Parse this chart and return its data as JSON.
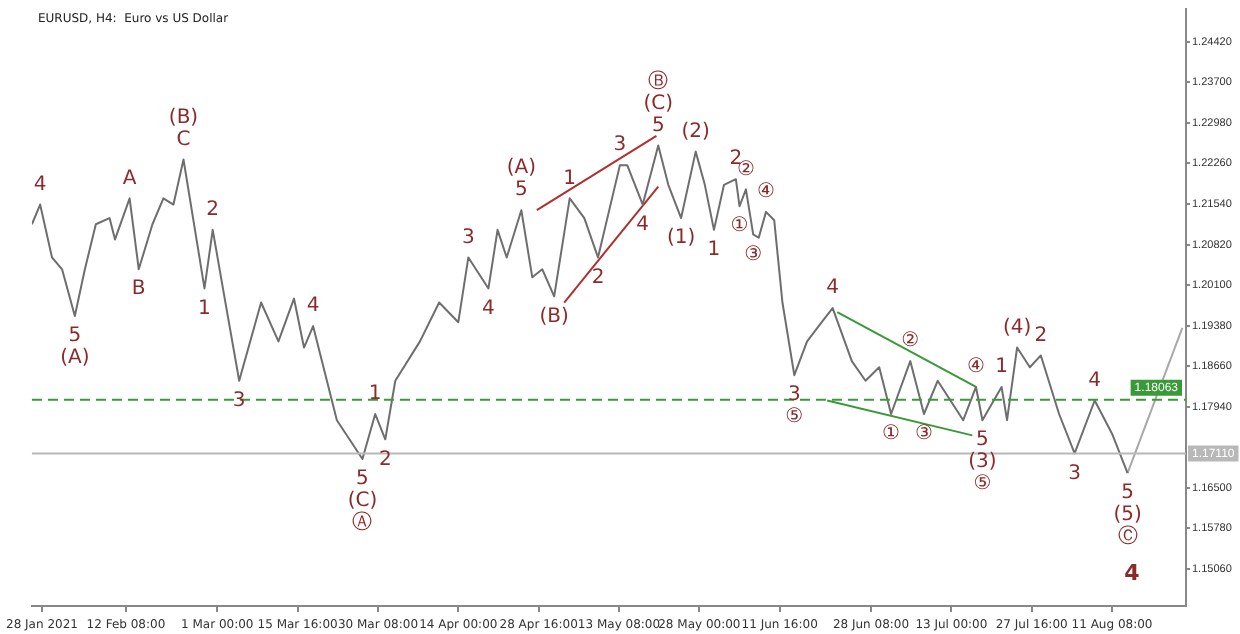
{
  "chart_data": {
    "type": "line",
    "title": "EURUSD, H4:  Euro vs US Dollar",
    "xlim": [
      "2021-01-26T04:00",
      "2021-08-24T20:00"
    ],
    "xticks": [
      {
        "value": "2021-01-28T00:00",
        "label": "28 Jan 2021"
      },
      {
        "value": "2021-02-12T08:00",
        "label": "12 Feb 08:00"
      },
      {
        "value": "2021-03-01T00:00",
        "label": "1 Mar 00:00"
      },
      {
        "value": "2021-03-15T16:00",
        "label": "15 Mar 16:00"
      },
      {
        "value": "2021-03-30T08:00",
        "label": "30 Mar 08:00"
      },
      {
        "value": "2021-04-14T00:00",
        "label": "14 Apr 00:00"
      },
      {
        "value": "2021-04-28T16:00",
        "label": "28 Apr 16:00"
      },
      {
        "value": "2021-05-13T08:00",
        "label": "13 May 08:00"
      },
      {
        "value": "2021-05-28T00:00",
        "label": "28 May 00:00"
      },
      {
        "value": "2021-06-11T16:00",
        "label": "11 Jun 16:00"
      },
      {
        "value": "2021-06-28T08:00",
        "label": "28 Jun 08:00"
      },
      {
        "value": "2021-07-13T00:00",
        "label": "13 Jul 00:00"
      },
      {
        "value": "2021-07-27T16:00",
        "label": "27 Jul 16:00"
      },
      {
        "value": "2021-08-11T08:00",
        "label": "11 Aug 08:00"
      }
    ],
    "ylim": [
      1.144,
      1.2501
    ],
    "yticks": [
      {
        "value": 1.2442,
        "label": "1.24420"
      },
      {
        "value": 1.237,
        "label": "1.23700"
      },
      {
        "value": 1.2298,
        "label": "1.22980"
      },
      {
        "value": 1.2226,
        "label": "1.22260"
      },
      {
        "value": 1.2154,
        "label": "1.21540"
      },
      {
        "value": 1.2082,
        "label": "1.20820"
      },
      {
        "value": 1.201,
        "label": "1.20100"
      },
      {
        "value": 1.1938,
        "label": "1.19380"
      },
      {
        "value": 1.1866,
        "label": "1.18660"
      },
      {
        "value": 1.1794,
        "label": "1.17940"
      },
      {
        "value": 1.165,
        "label": "1.16500"
      },
      {
        "value": 1.1578,
        "label": "1.15780"
      },
      {
        "value": 1.1506,
        "label": "1.15060"
      }
    ],
    "grid": false,
    "legend": false,
    "marker": "none",
    "series": [
      {
        "color": "#6e6e6e",
        "x": [
          "2021-01-26T04:00",
          "2021-01-27T16:00",
          "2021-01-29T20:00",
          "2021-01-31T16:00",
          "2021-02-03T00:00",
          "2021-02-04T20:00",
          "2021-02-06T20:00",
          "2021-02-09T08:00",
          "2021-02-10T08:00",
          "2021-02-13T00:00",
          "2021-02-14T16:00",
          "2021-02-17T04:00",
          "2021-02-19T04:00",
          "2021-02-21T00:00",
          "2021-02-22T20:00",
          "2021-02-25T08:00",
          "2021-02-26T16:00",
          "2021-02-28T04:00",
          "2021-03-02T16:00",
          "2021-03-05T00:00",
          "2021-03-09T00:00",
          "2021-03-12T04:00",
          "2021-03-15T00:00",
          "2021-03-16T20:00",
          "2021-03-18T12:00",
          "2021-03-22T20:00",
          "2021-03-27T12:00",
          "2021-03-29T20:00",
          "2021-03-31T16:00",
          "2021-04-02T12:00",
          "2021-04-07T00:00",
          "2021-04-10T12:00",
          "2021-04-14T00:00",
          "2021-04-15T20:00",
          "2021-04-19T12:00",
          "2021-04-21T04:00",
          "2021-04-22T20:00",
          "2021-04-25T12:00",
          "2021-04-27T12:00",
          "2021-04-29T08:00",
          "2021-05-01T12:00",
          "2021-05-04T08:00",
          "2021-05-07T00:00",
          "2021-05-09T12:00",
          "2021-05-13T12:00",
          "2021-05-14T20:00",
          "2021-05-17T16:00",
          "2021-05-20T12:00",
          "2021-05-22T08:00",
          "2021-05-24T16:00",
          "2021-05-27T08:00",
          "2021-05-29T00:00",
          "2021-05-30T16:00",
          "2021-06-01T12:00",
          "2021-06-03T16:00",
          "2021-06-04T08:00",
          "2021-06-05T12:00",
          "2021-06-06T20:00",
          "2021-06-07T20:00",
          "2021-06-09T04:00",
          "2021-06-10T16:00",
          "2021-06-12T04:00",
          "2021-06-14T08:00",
          "2021-06-16T16:00",
          "2021-06-19T08:00",
          "2021-06-21T08:00",
          "2021-06-24T20:00",
          "2021-06-27T08:00",
          "2021-06-29T20:00",
          "2021-07-02T00:00",
          "2021-07-05T12:00",
          "2021-07-08T00:00",
          "2021-07-10T12:00",
          "2021-07-15T04:00",
          "2021-07-17T12:00",
          "2021-07-18T16:00",
          "2021-07-22T04:00",
          "2021-07-23T04:00",
          "2021-07-25T00:00",
          "2021-07-27T08:00",
          "2021-07-29T08:00",
          "2021-08-01T16:00",
          "2021-08-04T12:00",
          "2021-08-08T04:00",
          "2021-08-11T08:00",
          "2021-08-14T04:00"
        ],
        "values": [
          1.2118,
          1.2153,
          1.2059,
          1.2038,
          1.1955,
          1.2038,
          1.2118,
          1.2129,
          1.2091,
          1.2164,
          1.2038,
          1.2118,
          1.2164,
          1.2153,
          1.2233,
          1.2084,
          1.2004,
          1.2108,
          1.1969,
          1.184,
          1.1979,
          1.191,
          1.1986,
          1.1899,
          1.1937,
          1.177,
          1.1701,
          1.1781,
          1.1736,
          1.184,
          1.191,
          1.1979,
          1.1944,
          1.2059,
          1.2004,
          1.2108,
          1.2059,
          1.2143,
          1.2024,
          1.2038,
          1.199,
          1.2164,
          1.2129,
          1.2059,
          1.2223,
          1.2223,
          1.2153,
          1.2258,
          1.2188,
          1.2129,
          1.2247,
          1.2188,
          1.2108,
          1.2188,
          1.2198,
          1.215,
          1.218,
          1.21,
          1.2094,
          1.214,
          1.2125,
          1.1979,
          1.185,
          1.191,
          1.1944,
          1.1969,
          1.1875,
          1.184,
          1.1864,
          1.1781,
          1.1875,
          1.1781,
          1.184,
          1.177,
          1.1829,
          1.177,
          1.1829,
          1.177,
          1.1899,
          1.1864,
          1.1885,
          1.1781,
          1.1711,
          1.1805,
          1.1746,
          1.1676
        ]
      },
      {
        "color": "#a8a8a8",
        "x": [
          "2021-08-14T04:00",
          "2021-08-24T04:00"
        ],
        "values": [
          1.1676,
          1.1934
        ]
      },
      {
        "color": "#b03030",
        "x": [
          "2021-04-28T08:00",
          "2021-05-20T04:00"
        ],
        "values": [
          1.2143,
          1.2275
        ]
      },
      {
        "color": "#b03030",
        "x": [
          "2021-05-03T08:00",
          "2021-05-20T12:00"
        ],
        "values": [
          1.1979,
          1.2185
        ]
      },
      {
        "color": "#3a9a3a",
        "x": [
          "2021-06-22T04:00",
          "2021-07-17T12:00"
        ],
        "values": [
          1.1962,
          1.1829
        ]
      },
      {
        "color": "#3a9a3a",
        "x": [
          "2021-06-20T08:00",
          "2021-07-16T20:00"
        ],
        "values": [
          1.1805,
          1.1743
        ]
      }
    ],
    "annotations": [
      {
        "text": "4",
        "x": "2021-01-27T16:00",
        "y": 1.2153
      },
      {
        "text": "5",
        "x": "2021-02-03T00:00",
        "y": 1.1955
      },
      {
        "text": "A",
        "x": "2021-02-13T00:00",
        "y": 1.2164
      },
      {
        "text": "B",
        "x": "2021-02-14T16:00",
        "y": 1.2038
      },
      {
        "text": "C",
        "x": "2021-02-22T20:00",
        "y": 1.2233
      },
      {
        "text": "1",
        "x": "2021-02-26T16:00",
        "y": 1.2004
      },
      {
        "text": "2",
        "x": "2021-02-28T04:00",
        "y": 1.2108
      },
      {
        "text": "3",
        "x": "2021-03-05T00:00",
        "y": 1.184
      },
      {
        "text": "4",
        "x": "2021-03-18T12:00",
        "y": 1.1937
      },
      {
        "text": "5",
        "x": "2021-03-27T12:00",
        "y": 1.1701
      },
      {
        "text": "1",
        "x": "2021-03-29T20:00",
        "y": 1.1781
      },
      {
        "text": "2",
        "x": "2021-03-31T16:00",
        "y": 1.1736
      },
      {
        "text": "3",
        "x": "2021-04-15T20:00",
        "y": 1.2059
      },
      {
        "text": "4",
        "x": "2021-04-19T12:00",
        "y": 1.2004
      },
      {
        "text": "5",
        "x": "2021-04-25T12:00",
        "y": 1.2143
      },
      {
        "text": "1",
        "x": "2021-05-04T08:00",
        "y": 1.2164
      },
      {
        "text": "2",
        "x": "2021-05-09T12:00",
        "y": 1.2059
      },
      {
        "text": "3",
        "x": "2021-05-13T12:00",
        "y": 1.2223
      },
      {
        "text": "4",
        "x": "2021-05-17T16:00",
        "y": 1.2153
      },
      {
        "text": "5",
        "x": "2021-05-20T12:00",
        "y": 1.2258
      },
      {
        "text": "1",
        "x": "2021-05-30T16:00",
        "y": 1.2108
      },
      {
        "text": "2",
        "x": "2021-06-03T16:00",
        "y": 1.2198
      },
      {
        "text": "3",
        "x": "2021-06-14T08:00",
        "y": 1.185
      },
      {
        "text": "4",
        "x": "2021-06-21T08:00",
        "y": 1.1969
      },
      {
        "text": "5",
        "x": "2021-07-18T16:00",
        "y": 1.177
      },
      {
        "text": "1",
        "x": "2021-07-22T04:00",
        "y": 1.1829
      },
      {
        "text": "2",
        "x": "2021-07-29T08:00",
        "y": 1.1885
      },
      {
        "text": "3",
        "x": "2021-08-04T12:00",
        "y": 1.1711
      },
      {
        "text": "4",
        "x": "2021-08-08T04:00",
        "y": 1.1805
      },
      {
        "text": "5",
        "x": "2021-08-14T04:00",
        "y": 1.1676
      },
      {
        "text": "(A)",
        "x": "2021-02-03T00:00",
        "y": 1.1955
      },
      {
        "text": "(B)",
        "x": "2021-02-22T20:00",
        "y": 1.2233
      },
      {
        "text": "(C)",
        "x": "2021-03-27T12:00",
        "y": 1.1701
      },
      {
        "text": "(A)",
        "x": "2021-04-25T12:00",
        "y": 1.2143
      },
      {
        "text": "(B)",
        "x": "2021-05-01T12:00",
        "y": 1.199
      },
      {
        "text": "(C)",
        "x": "2021-05-20T12:00",
        "y": 1.2258
      },
      {
        "text": "(1)",
        "x": "2021-05-24T16:00",
        "y": 1.2129
      },
      {
        "text": "(2)",
        "x": "2021-05-27T08:00",
        "y": 1.2247
      },
      {
        "text": "(3)",
        "x": "2021-07-18T16:00",
        "y": 1.177
      },
      {
        "text": "(4)",
        "x": "2021-07-25T00:00",
        "y": 1.1899
      },
      {
        "text": "(5)",
        "x": "2021-08-14T04:00",
        "y": 1.1676
      },
      {
        "text": "Ⓐ",
        "x": "2021-03-27T12:00",
        "y": 1.1701
      },
      {
        "text": "Ⓑ",
        "x": "2021-05-20T12:00",
        "y": 1.2258
      },
      {
        "text": "①",
        "x": "2021-06-04T08:00",
        "y": 1.215
      },
      {
        "text": "②",
        "x": "2021-06-05T12:00",
        "y": 1.218
      },
      {
        "text": "③",
        "x": "2021-06-06T20:00",
        "y": 1.21
      },
      {
        "text": "④",
        "x": "2021-06-09T04:00",
        "y": 1.214
      },
      {
        "text": "⑤",
        "x": "2021-06-14T08:00",
        "y": 1.185
      },
      {
        "text": "①",
        "x": "2021-07-02T00:00",
        "y": 1.1781
      },
      {
        "text": "②",
        "x": "2021-07-05T12:00",
        "y": 1.1875
      },
      {
        "text": "③",
        "x": "2021-07-08T00:00",
        "y": 1.1781
      },
      {
        "text": "④",
        "x": "2021-07-17T12:00",
        "y": 1.1829
      },
      {
        "text": "⑤",
        "x": "2021-07-18T16:00",
        "y": 1.177
      },
      {
        "text": "Ⓒ",
        "x": "2021-08-14T04:00",
        "y": 1.1676
      },
      "4"
    ],
    "ref_lines": [
      {
        "axis": "y",
        "value": 1.18063,
        "label": "1.18063",
        "color": "#3a9a3a",
        "line_style": "dashed"
      },
      {
        "axis": "y",
        "value": 1.1711,
        "label": "1.17110",
        "color": "#b8b8b8",
        "line_style": "solid"
      }
    ]
  }
}
